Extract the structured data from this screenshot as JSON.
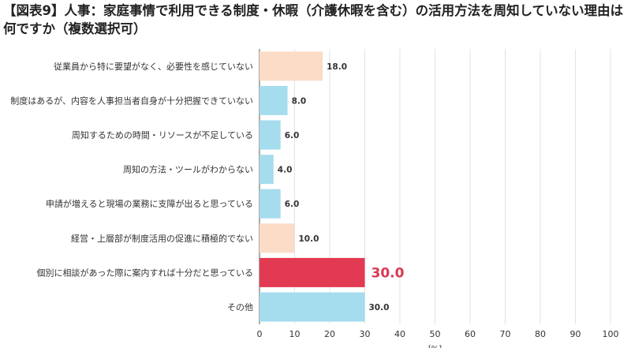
{
  "title": "【図表9】人事：家庭事情で利用できる制度・休暇（介護休暇を含む）の活用方法を周知していない理由は何ですか（複数選択可）",
  "chart_data": {
    "type": "bar",
    "orientation": "horizontal",
    "title": "【図表9】人事：家庭事情で利用できる制度・休暇（介護休暇を含む）の活用方法を周知していない理由は何ですか（複数選択可）",
    "categories": [
      "従業員から特に要望がなく、必要性を感じていない",
      "制度はあるが、内容を人事担当者自身が十分把握できていない",
      "周知するための時間・リソースが不足している",
      "周知の方法・ツールがわからない",
      "申請が増えると現場の業務に支障が出ると思っている",
      "経営・上層部が制度活用の促進に積極的でない",
      "個別に相談があった際に案内すれば十分だと思っている",
      "その他"
    ],
    "values": [
      18.0,
      8.0,
      6.0,
      4.0,
      6.0,
      10.0,
      30.0,
      30.0
    ],
    "value_labels": [
      "18.0",
      "8.0",
      "6.0",
      "4.0",
      "6.0",
      "10.0",
      "30.0",
      "30.0"
    ],
    "bar_colors": [
      "#fbdcc7",
      "#a5dcee",
      "#a5dcee",
      "#a5dcee",
      "#a5dcee",
      "#fbdcc7",
      "#e23a52",
      "#a5dcee"
    ],
    "highlight_index": 6,
    "highlight_label_color": "#d83850",
    "xlim": [
      0,
      100
    ],
    "xticks": [
      0,
      10,
      20,
      30,
      40,
      50,
      60,
      70,
      80,
      90,
      100
    ],
    "xlabel": "[%]",
    "grid": "vertical"
  }
}
